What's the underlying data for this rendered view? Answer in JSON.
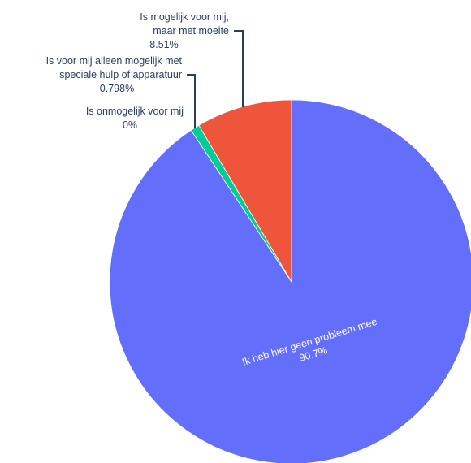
{
  "chart_data": {
    "type": "pie",
    "direction": "clockwise",
    "start": "top",
    "slices": [
      {
        "label_lines": [
          "Ik heb hier geen probleem mee"
        ],
        "value": 90.7,
        "value_text": "90.7%",
        "color": "#636efa"
      },
      {
        "label_lines": [
          "Is onmogelijk voor mij"
        ],
        "value": 0,
        "value_text": "0%",
        "color": "#ab63fa"
      },
      {
        "label_lines": [
          "Is voor mij alleen mogelijk met",
          "speciale hulp of apparatuur"
        ],
        "value": 0.798,
        "value_text": "0.798%",
        "color": "#00cc96"
      },
      {
        "label_lines": [
          "Is mogelijk voor mij,",
          "maar met moeite"
        ],
        "value": 8.51,
        "value_text": "8.51%",
        "color": "#ef553b"
      }
    ]
  }
}
